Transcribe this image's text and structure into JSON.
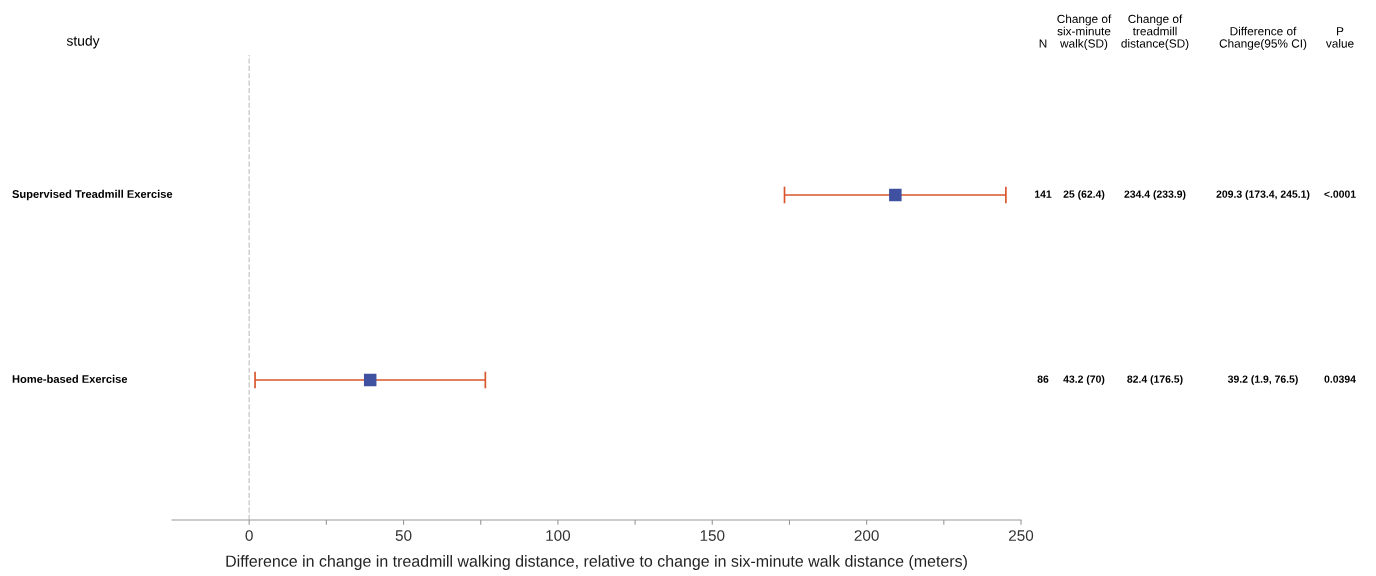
{
  "chart_data": {
    "type": "scatter",
    "orientation": "horizontal",
    "ylabel": "study",
    "xlabel": "Difference in change in treadmill walking distance, relative to change in six-minute walk distance (meters)",
    "categories": [
      "Supervised Treadmill Exercise",
      "Home-based Exercise"
    ],
    "color": "#3f51a0",
    "values": [
      209.3,
      39.2
    ],
    "errors": [
      [
        173.4,
        245.1
      ],
      [
        1.9,
        76.5
      ]
    ],
    "annotations": [
      "N",
      "Change of\nsix-minute\nwalk(SD)",
      "Change of\ntreadmill\ndistance(SD)",
      "Difference of\nChange(95% CI)",
      "P\nvalue",
      "141",
      "25 (62.4)",
      "234.4 (233.9)",
      "209.3 (173.4, 245.1)",
      "<.0001",
      "86",
      "43.2 (70)",
      "82.4 (176.5)",
      "39.2 (1.9, 76.5)",
      "0.0394"
    ],
    "xlim": [
      -25,
      250
    ],
    "xticks": [
      0,
      {
        "value": 25,
        "label": null
      },
      50,
      {
        "value": 75,
        "label": null
      },
      100,
      {
        "value": 125,
        "label": null
      },
      150,
      {
        "value": 175,
        "label": null
      },
      200,
      {
        "value": 225,
        "label": null
      },
      250
    ],
    "ref_lines": [
      {
        "axis": "x",
        "value": 0,
        "color": "#cccccc",
        "line_style": "dashed"
      }
    ],
    "marker": "square",
    "grid": false,
    "legend": false
  }
}
